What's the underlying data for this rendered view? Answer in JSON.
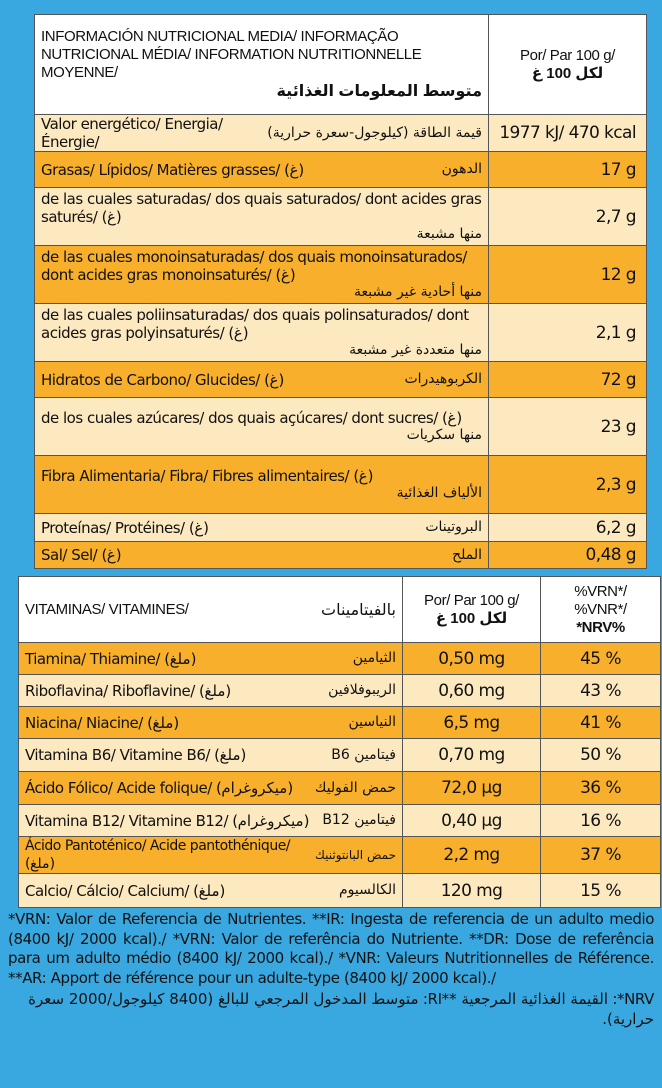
{
  "nutrition": {
    "header": {
      "title_multilang": "INFORMACIÓN NUTRICIONAL MEDIA/ INFORMAÇÃO NUTRICIONAL MÉDIA/ INFORMATION NUTRITIONNELLE MOYENNE/",
      "title_ar": "متوسط المعلومات الغذائية",
      "per_label": "Por/ Par 100 g/",
      "per_label_ar": "لكل 100 غ"
    },
    "rows": [
      {
        "name": "Valor energético/ Energia/ Énergie/",
        "name_ar": "قيمة الطاقة (كيلوجول-سعرة حرارية)",
        "value": "1977 kJ/ 470 kcal"
      },
      {
        "name": "Grasas/ Lípidos/ Matières grasses/ (غ)",
        "name_ar": "الدهون",
        "value": "17 g"
      },
      {
        "name": "de las cuales saturadas/ dos quais saturados/ dont acides gras saturés/ (غ)",
        "name_ar": "منها مشبعة",
        "value": "2,7 g"
      },
      {
        "name": "de las cuales monoinsaturadas/ dos quais monoinsaturados/ dont acides gras monoinsaturés/ (غ)",
        "name_ar": "منها أحادية غير مشبعة",
        "value": "12 g"
      },
      {
        "name": "de las cuales poliinsaturadas/ dos quais polinsaturados/ dont acides gras polyinsaturés/ (غ)",
        "name_ar": "منها متعددة غير مشبعة",
        "value": "2,1 g"
      },
      {
        "name": "Hidratos de Carbono/ Glucides/ (غ)",
        "name_ar": "الكربوهيدرات",
        "value": "72 g"
      },
      {
        "name": "de los cuales azúcares/ dos quais açúcares/ dont sucres/ (غ)",
        "name_ar": "منها سكريات",
        "value": "23 g"
      },
      {
        "name": "Fibra Alimentaria/ Fibra/ Fibres alimentaires/ (غ)",
        "name_ar": "الألياف الغذائية",
        "value": "2,3 g"
      },
      {
        "name": "Proteínas/ Protéines/ (غ)",
        "name_ar": "البروتينات",
        "value": "6,2 g"
      },
      {
        "name": "Sal/ Sel/ (غ)",
        "name_ar": "الملح",
        "value": "0,48 g"
      }
    ]
  },
  "vitamins": {
    "header": {
      "title": "VITAMINAS/ VITAMINES/",
      "title_ar": "بالفيتامينات",
      "per_label": "Por/ Par 100 g/",
      "per_label_ar": "لكل 100 غ",
      "vrn_label": "%VRN*/ %VNR*/",
      "nrv_label": "*NRV%"
    },
    "rows": [
      {
        "name": "Tiamina/ Thiamine/ (ملغ)",
        "name_ar": "الثيامين",
        "value": "0,50 mg",
        "pct": "45 %"
      },
      {
        "name": "Riboflavina/ Riboflavine/ (ملغ)",
        "name_ar": "الريبوفلافين",
        "value": "0,60 mg",
        "pct": "43 %"
      },
      {
        "name": "Niacina/ Niacine/ (ملغ)",
        "name_ar": "النياسين",
        "value": "6,5 mg",
        "pct": "41 %"
      },
      {
        "name": "Vitamina B6/ Vitamine B6/ (ملغ)",
        "name_ar": "فيتامين B6",
        "value": "0,70 mg",
        "pct": "50 %"
      },
      {
        "name": "Ácido Fólico/ Acide folique/ (ميكروغرام)",
        "name_ar": "حمض الفوليك",
        "value": "72,0 µg",
        "pct": "36 %"
      },
      {
        "name": "Vitamina B12/ Vitamine B12/ (ميكروغرام)",
        "name_ar": "فيتامين B12",
        "value": "0,40 µg",
        "pct": "16 %"
      },
      {
        "name": "Ácido Pantoténico/ Acide pantothénique/ (ملغ)",
        "name_ar": "حمض البانتوثنيك",
        "value": "2,2 mg",
        "pct": "37 %"
      },
      {
        "name": "Calcio/ Cálcio/ Calcium/ (ملغ)",
        "name_ar": "الكالسيوم",
        "value": "120 mg",
        "pct": "15 %"
      }
    ]
  },
  "footnote": {
    "text": "*VRN: Valor de Referencia de Nutrientes. **IR: Ingesta de referencia de un adulto medio (8400 kJ/ 2000 kcal)./ *VRN: Valor de referência do Nutriente. **DR: Dose de referência para um adulto médio (8400 kJ/ 2000 kcal)./ *VNR: Valeurs Nutritionnelles de Référence. **AR: Apport de référence pour un adulte-type (8400 kJ/ 2000 kcal)./",
    "text_ar": "NRV*: القيمة الغذائية المرجعية **RI: متوسط المدخول المرجعي للبالغ (8400 كيلوجول/2000 سعرة حرارية)."
  },
  "colors": {
    "background": "#39a8e0",
    "row_light": "#fde9c0",
    "row_dark": "#f8b02c"
  }
}
